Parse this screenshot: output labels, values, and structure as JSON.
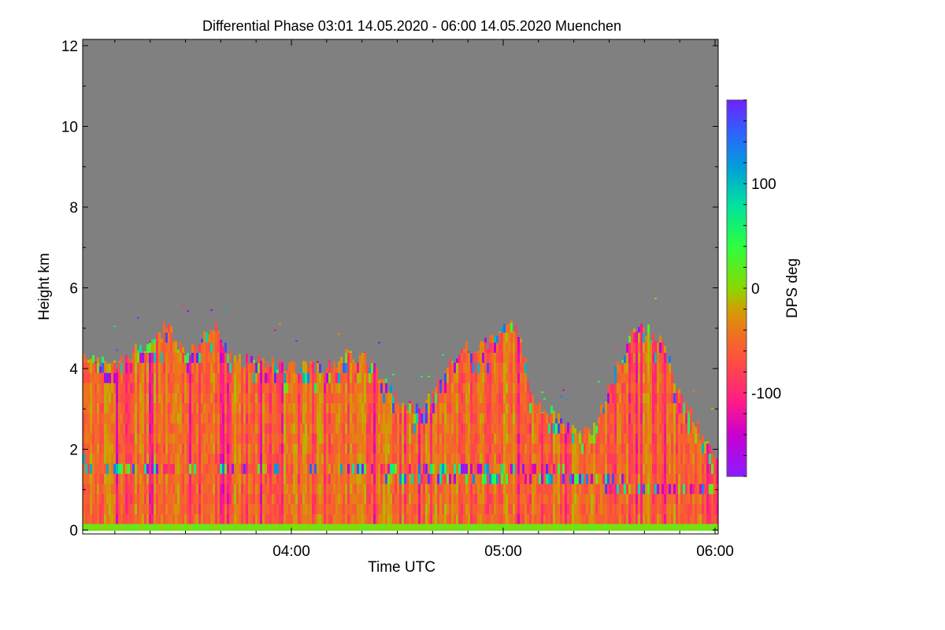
{
  "chart_data": {
    "type": "heatmap",
    "title": "Differential Phase   03:01 14.05.2020 - 06:00 14.05.2020 Muenchen",
    "xlabel": "Time UTC",
    "ylabel": "Height km",
    "xlim_minutes": [
      181,
      360
    ],
    "ylim": [
      0,
      12
    ],
    "x_ticks": [
      {
        "min": 240,
        "label": "04:00"
      },
      {
        "min": 300,
        "label": "05:00"
      },
      {
        "min": 360,
        "label": "06:00"
      }
    ],
    "y_ticks": [
      0,
      2,
      4,
      6,
      8,
      10,
      12
    ],
    "colorbar": {
      "label": "DPS deg",
      "range": [
        -180,
        180
      ],
      "ticks": [
        -100,
        0,
        100
      ],
      "stops": [
        {
          "v": -180,
          "c": "#8a1cff"
        },
        {
          "v": -140,
          "c": "#c800d0"
        },
        {
          "v": -110,
          "c": "#ff1a8a"
        },
        {
          "v": -75,
          "c": "#ff4848"
        },
        {
          "v": -45,
          "c": "#f07020"
        },
        {
          "v": -20,
          "c": "#d0a000"
        },
        {
          "v": 0,
          "c": "#8ad800"
        },
        {
          "v": 40,
          "c": "#2cff40"
        },
        {
          "v": 80,
          "c": "#00e0a0"
        },
        {
          "v": 115,
          "c": "#00a0d8"
        },
        {
          "v": 150,
          "c": "#3060ff"
        },
        {
          "v": 180,
          "c": "#7020ff"
        }
      ]
    },
    "no_data_color": "#808080",
    "echo_top_km": {
      "minutes": [
        181,
        190,
        195,
        200,
        205,
        210,
        215,
        218,
        222,
        225,
        230,
        235,
        240,
        250,
        255,
        260,
        265,
        270,
        275,
        280,
        285,
        288,
        292,
        295,
        300,
        303,
        305,
        308,
        315,
        320,
        325,
        330,
        335,
        340,
        345,
        350,
        355,
        360
      ],
      "values": [
        4.3,
        4.0,
        4.4,
        4.6,
        5.1,
        4.2,
        4.8,
        5.1,
        4.3,
        4.2,
        4.2,
        4.1,
        4.0,
        4.0,
        4.3,
        4.3,
        3.8,
        3.2,
        3.0,
        3.3,
        4.2,
        4.6,
        4.5,
        4.6,
        5.1,
        5.0,
        4.6,
        3.3,
        2.8,
        2.6,
        2.5,
        3.5,
        4.7,
        5.0,
        4.6,
        3.4,
        2.5,
        1.8
      ]
    },
    "melting_layer_km": {
      "minutes": [
        181,
        240,
        290,
        300,
        310,
        340,
        360
      ],
      "values": [
        1.45,
        1.4,
        1.3,
        1.3,
        1.35,
        0.9,
        0.85
      ]
    },
    "typical_phase_deg": -50,
    "ground_clutter_phase_deg": 10
  }
}
